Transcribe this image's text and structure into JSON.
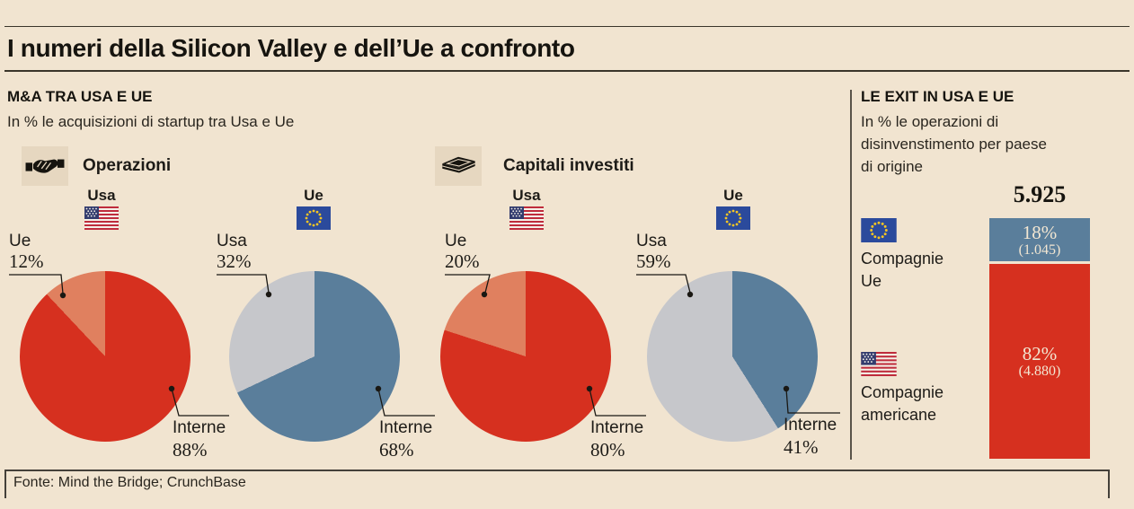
{
  "title": "I numeri della Silicon Valley e dell’Ue a confronto",
  "left_section": {
    "heading": "M&A TRA USA E UE",
    "subheading": "In % le acquisizioni di startup tra Usa e Ue",
    "groups": [
      {
        "label": "Operazioni",
        "icon": "handshake-icon"
      },
      {
        "label": "Capitali investiti",
        "icon": "banknotes-icon"
      }
    ]
  },
  "right_section": {
    "heading": "LE EXIT IN USA E UE",
    "subheading_lines": [
      "In % le operazioni di",
      "disinvenstimento per paese",
      "di origine"
    ],
    "legend": [
      {
        "flag": "eu-flag",
        "lines": [
          "Compagnie",
          "Ue"
        ]
      },
      {
        "flag": "us-flag",
        "lines": [
          "Compagnie",
          "americane"
        ]
      }
    ]
  },
  "footer": {
    "source": "Fonte: Mind the Bridge; CrunchBase"
  },
  "colors": {
    "background": "#f1e4d0",
    "red": "#d6301f",
    "salmon": "#e0805f",
    "blue": "#5a7e9b",
    "gray": "#c6c7cb"
  },
  "chart_data": [
    {
      "type": "pie",
      "group": "Operazioni",
      "country": "Usa",
      "flag": "us",
      "slices": [
        {
          "label": "Interne",
          "value": 88,
          "display": "88%",
          "color": "#d6301f"
        },
        {
          "label": "Ue",
          "value": 12,
          "display": "12%",
          "color": "#e0805f"
        }
      ]
    },
    {
      "type": "pie",
      "group": "Operazioni",
      "country": "Ue",
      "flag": "eu",
      "slices": [
        {
          "label": "Interne",
          "value": 68,
          "display": "68%",
          "color": "#5a7e9b"
        },
        {
          "label": "Usa",
          "value": 32,
          "display": "32%",
          "color": "#c6c7cb"
        }
      ]
    },
    {
      "type": "pie",
      "group": "Capitali investiti",
      "country": "Usa",
      "flag": "us",
      "slices": [
        {
          "label": "Interne",
          "value": 80,
          "display": "80%",
          "color": "#d6301f"
        },
        {
          "label": "Ue",
          "value": 20,
          "display": "20%",
          "color": "#e0805f"
        }
      ]
    },
    {
      "type": "pie",
      "group": "Capitali investiti",
      "country": "Ue",
      "flag": "eu",
      "slices": [
        {
          "label": "Interne",
          "value": 41,
          "display": "41%",
          "color": "#5a7e9b"
        },
        {
          "label": "Usa",
          "value": 59,
          "display": "59%",
          "color": "#c6c7cb"
        }
      ]
    },
    {
      "type": "stacked-bar",
      "title_value": "5.925",
      "segments": [
        {
          "label": "Compagnie Ue",
          "value": 18,
          "display": "18%",
          "count_display": "(1.045)",
          "color": "#5a7e9b"
        },
        {
          "label": "Compagnie americane",
          "value": 82,
          "display": "82%",
          "count_display": "(4.880)",
          "color": "#d6301f"
        }
      ]
    }
  ]
}
